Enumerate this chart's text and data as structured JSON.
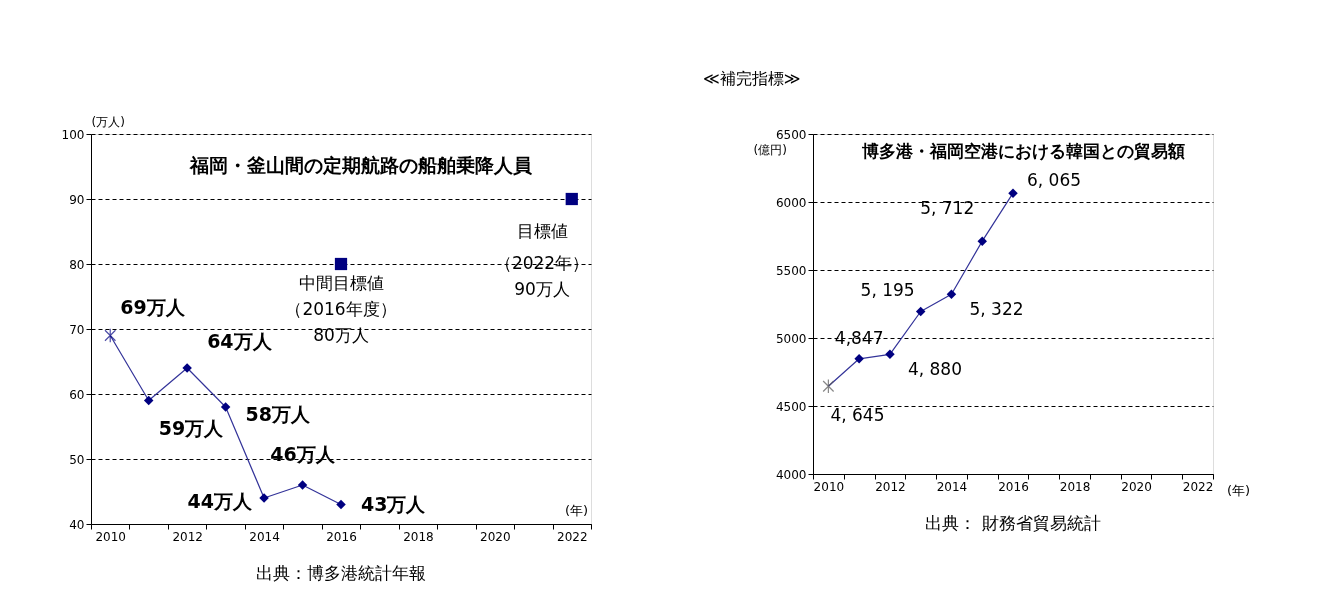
{
  "chart_data": [
    {
      "type": "line",
      "title": "福岡・釜山間の定期航路の船舶乗降人員",
      "ylabel": "(万人)",
      "xlabel": "(年)",
      "categories": [
        "2010",
        null,
        "2012",
        null,
        "2014",
        null,
        "2016",
        null,
        "2018",
        null,
        "2020",
        null,
        "2022"
      ],
      "ylim": [
        40,
        100
      ],
      "yticks": [
        40,
        50,
        60,
        70,
        80,
        90,
        100
      ],
      "grid": "y",
      "series": [
        {
          "color": "#333399",
          "marker": "none",
          "values": [
            69,
            59,
            64,
            58,
            44,
            46,
            43,
            null,
            null,
            null,
            null,
            null,
            null
          ]
        },
        {
          "type": "scatter",
          "color": "#000080",
          "marker": "cross",
          "values": [
            69,
            null,
            null,
            null,
            null,
            null,
            null,
            null,
            null,
            null,
            null,
            null,
            null
          ],
          "value_labels": [
            "69万人",
            null,
            null,
            null,
            null,
            null,
            null,
            null,
            null,
            null,
            null,
            null,
            null
          ]
        },
        {
          "type": "scatter",
          "color": "#000080",
          "marker": "diamond",
          "values": [
            null,
            59,
            64,
            58,
            44,
            46,
            43,
            null,
            null,
            null,
            null,
            null,
            null
          ],
          "value_labels": [
            null,
            "59万人",
            "64万人",
            "58万人",
            "44万人",
            "46万人",
            "43万人",
            null,
            null,
            null,
            null,
            null,
            null
          ]
        },
        {
          "type": "scatter",
          "color": "#000080",
          "marker": "square",
          "values": [
            null,
            null,
            null,
            null,
            null,
            null,
            80,
            null,
            null,
            null,
            null,
            null,
            90
          ]
        }
      ],
      "annotations": [
        "中間目標値",
        "（2016年度）",
        "80万人",
        "目標値",
        "（2022年）",
        "90万人",
        "出典：博多港統計年報"
      ]
    },
    {
      "type": "line",
      "title": "博多港・福岡空港における韓国との貿易額",
      "subtitle": "≪補完指標≫",
      "ylabel": "(億円)",
      "xlabel": "(年)",
      "categories": [
        "2010",
        null,
        "2012",
        null,
        "2014",
        null,
        "2016",
        null,
        "2018",
        null,
        "2020",
        null,
        "2022"
      ],
      "ylim": [
        4000,
        6500
      ],
      "yticks": [
        4000,
        4500,
        5000,
        5500,
        6000,
        6500
      ],
      "grid": "y",
      "series": [
        {
          "color": "#333399",
          "marker": "none",
          "values": [
            4645,
            4847,
            4880,
            5195,
            5322,
            5712,
            6065,
            null,
            null,
            null,
            null,
            null,
            null
          ]
        },
        {
          "type": "scatter",
          "color": "#555555",
          "marker": "cross",
          "values": [
            4645,
            null,
            null,
            null,
            null,
            null,
            null,
            null,
            null,
            null,
            null,
            null,
            null
          ],
          "value_labels": [
            "4, 645",
            null,
            null,
            null,
            null,
            null,
            null,
            null,
            null,
            null,
            null,
            null,
            null
          ]
        },
        {
          "type": "scatter",
          "color": "#000080",
          "marker": "diamond",
          "values": [
            null,
            4847,
            4880,
            5195,
            5322,
            5712,
            6065,
            null,
            null,
            null,
            null,
            null,
            null
          ],
          "value_labels": [
            null,
            "4,847",
            "4, 880",
            "5, 195",
            "5, 322",
            "5, 712",
            "6, 065",
            null,
            null,
            null,
            null,
            null,
            null
          ]
        }
      ],
      "annotations": [
        "出典： 財務省貿易統計"
      ]
    }
  ]
}
